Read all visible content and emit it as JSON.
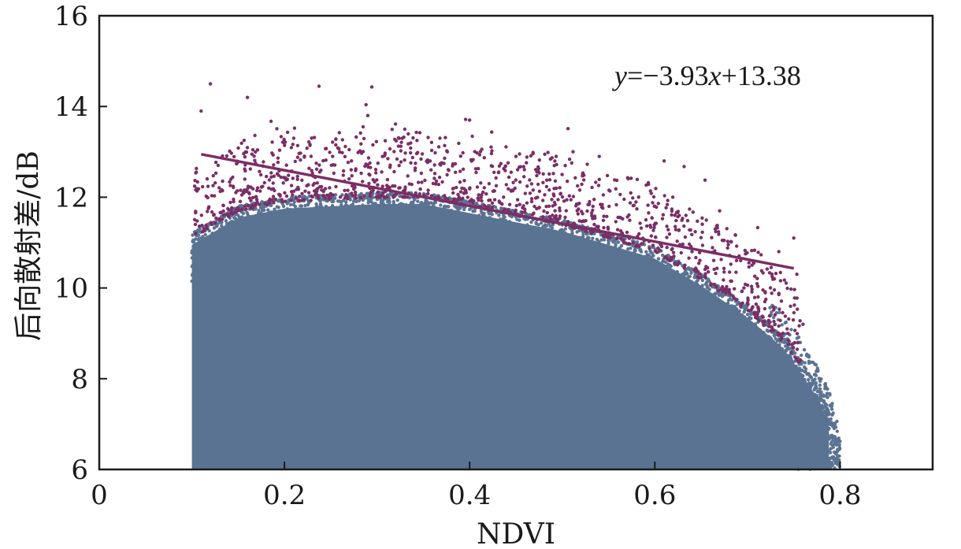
{
  "chart_data": {
    "type": "scatter",
    "xlabel": "NDVI",
    "ylabel": "后向散射差/dB",
    "xlim": [
      0,
      0.9
    ],
    "ylim": [
      6,
      16
    ],
    "x_ticks": [
      0,
      0.2,
      0.4,
      0.6,
      0.8
    ],
    "y_ticks": [
      6,
      8,
      10,
      12,
      14,
      16
    ],
    "x_tick_labels": [
      "0",
      "0.2",
      "0.4",
      "0.6",
      "0.8"
    ],
    "y_tick_labels": [
      "6",
      "8",
      "10",
      "12",
      "14",
      "16"
    ],
    "grid": false,
    "point_density_model": {
      "x_range": [
        0.1,
        0.8
      ],
      "y_floor": 6,
      "blue_envelope": [
        [
          0.1,
          11.2
        ],
        [
          0.15,
          11.8
        ],
        [
          0.2,
          12.0
        ],
        [
          0.3,
          12.1
        ],
        [
          0.35,
          12.1
        ],
        [
          0.4,
          11.9
        ],
        [
          0.5,
          11.5
        ],
        [
          0.55,
          11.2
        ],
        [
          0.6,
          10.9
        ],
        [
          0.65,
          10.3
        ],
        [
          0.7,
          9.6
        ],
        [
          0.74,
          8.9
        ],
        [
          0.77,
          8.0
        ],
        [
          0.79,
          7.2
        ],
        [
          0.8,
          6.3
        ]
      ],
      "purple_band_thickness": 0.9
    },
    "series": [
      {
        "label": "blue",
        "color": "#5b7393",
        "x": [
          0.1,
          0.15,
          0.2,
          0.3,
          0.4,
          0.5,
          0.6,
          0.7,
          0.75,
          0.78,
          0.8
        ],
        "y": [
          11.2,
          11.8,
          12.0,
          12.1,
          11.9,
          11.5,
          10.9,
          9.6,
          8.5,
          7.5,
          6.3
        ]
      },
      {
        "label": "purple",
        "color": "#7a2e66",
        "x": [
          0.11,
          0.12,
          0.16,
          0.21,
          0.29,
          0.33,
          0.4,
          0.45,
          0.54,
          0.61,
          0.67,
          0.75,
          0.76
        ],
        "y": [
          13.9,
          14.5,
          14.2,
          13.3,
          13.8,
          13.5,
          13.7,
          12.9,
          12.9,
          12.8,
          11.7,
          11.1,
          9.2
        ]
      }
    ],
    "fit_line": {
      "slope": -3.93,
      "intercept": 13.38,
      "x_range": [
        0.11,
        0.75
      ],
      "color": "#7a2e66"
    },
    "annotation": {
      "y": "y",
      "x": "x",
      "parts": [
        "=−3.93",
        "+13.38"
      ]
    }
  }
}
